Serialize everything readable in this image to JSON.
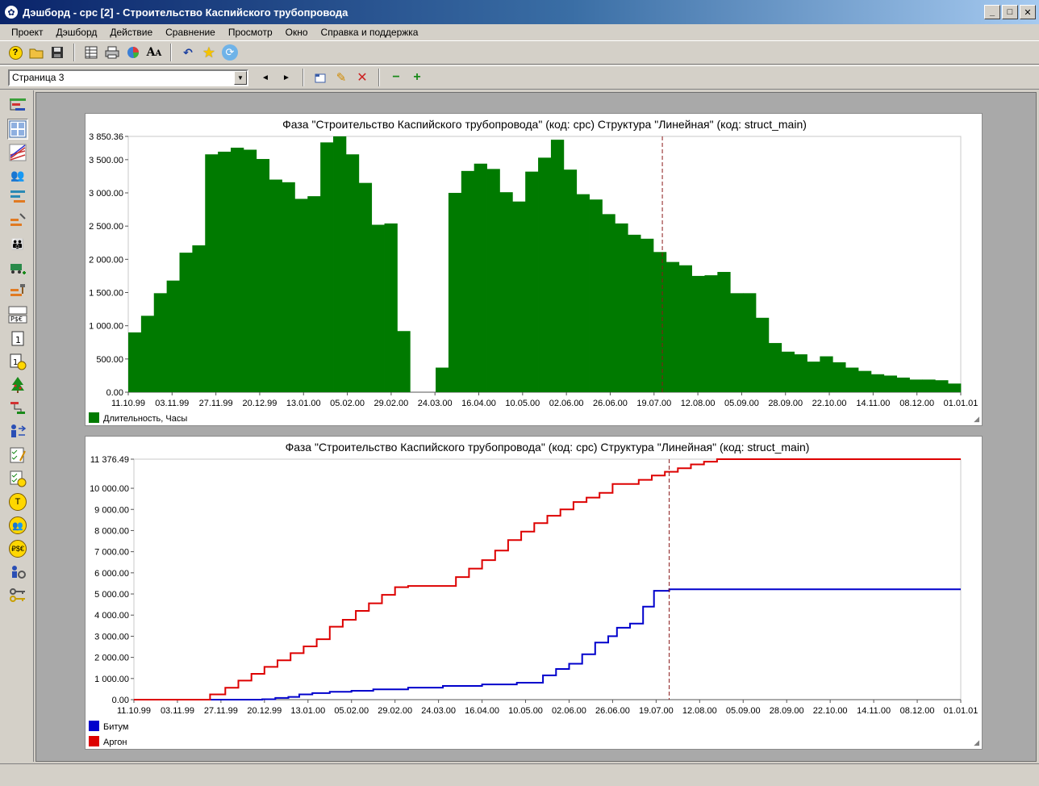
{
  "window": {
    "title": "Дэшборд - cpc [2] - Строительство Каспийского трубопровода",
    "controls": [
      "_",
      "□",
      "✕"
    ]
  },
  "menu": [
    "Проект",
    "Дэшборд",
    "Действие",
    "Сравнение",
    "Просмотр",
    "Окно",
    "Справка и поддержка"
  ],
  "toolbar": {
    "icons": [
      "help-icon",
      "open-folder-icon",
      "save-icon",
      "table-icon",
      "print-icon",
      "pie-chart-icon",
      "font-icon",
      "undo-icon",
      "star-icon",
      "refresh-icon"
    ]
  },
  "page_toolbar": {
    "page_select_value": "Страница 3",
    "icons": [
      "prev-arrow-icon",
      "next-arrow-icon",
      "new-page-icon",
      "edit-pencil-icon",
      "delete-icon",
      "zoom-out-icon",
      "zoom-in-icon"
    ]
  },
  "left_toolbar_icons": [
    "structure-tree-icon",
    "dashboard-grid-icon",
    "lines-chart-icon",
    "resources-group-icon",
    "gantt-bars-icon",
    "tasks-tools-icon",
    "people-group-icon",
    "machine-add-icon",
    "hammer-bars-icon",
    "currency-table-icon",
    "calendar-icon",
    "calendar-clock-icon",
    "tree-icon",
    "link-tasks-icon",
    "person-arrows-icon",
    "checklist-edit-icon",
    "checklist-clock-icon",
    "round-tool-icon",
    "round-people-icon",
    "round-currency-icon",
    "settings-people-icon",
    "keys-icon"
  ],
  "colors": {
    "histogram": "#007a00",
    "bitum": "#0000cc",
    "argon": "#dd0000",
    "today_line": "#8b1a1a"
  },
  "chart_data": [
    {
      "type": "bar",
      "title": "Фаза \"Строительство Каспийского трубопровода\" (код: cpc) Структура \"Линейная\" (код: struct_main)",
      "x_tick_labels": [
        "11.10.99",
        "03.11.99",
        "27.11.99",
        "20.12.99",
        "13.01.00",
        "05.02.00",
        "29.02.00",
        "24.03.00",
        "16.04.00",
        "10.05.00",
        "02.06.00",
        "26.06.00",
        "19.07.00",
        "12.08.00",
        "05.09.00",
        "28.09.00",
        "22.10.00",
        "14.11.00",
        "08.12.00",
        "01.01.01"
      ],
      "y_tick_labels": [
        "0.00",
        "500.00",
        "1 000.00",
        "1 500.00",
        "2 000.00",
        "2 500.00",
        "3 000.00",
        "3 500.00",
        "3 850.36"
      ],
      "ylim": [
        0,
        3850.36
      ],
      "series": [
        {
          "name": "Длительность, Часы",
          "values": [
            900,
            1150,
            1490,
            1680,
            2100,
            2210,
            3580,
            3620,
            3680,
            3650,
            3510,
            3200,
            3160,
            2910,
            2950,
            3760,
            3850.36,
            3580,
            3150,
            2520,
            2540,
            920,
            0,
            0,
            370,
            3000,
            3330,
            3440,
            3360,
            3010,
            2870,
            3320,
            3530,
            3800,
            3350,
            2980,
            2900,
            2680,
            2540,
            2370,
            2310,
            2110,
            1960,
            1910,
            1750,
            1760,
            1810,
            1490,
            1490,
            1120,
            740,
            610,
            570,
            460,
            540,
            450,
            370,
            320,
            270,
            250,
            220,
            190,
            190,
            180,
            130
          ]
        }
      ],
      "today_index": 41.7,
      "legend_position": "bottom-left"
    },
    {
      "type": "line",
      "title": "Фаза \"Строительство Каспийского трубопровода\" (код: cpc) Структура \"Линейная\" (код: struct_main)",
      "x_tick_labels": [
        "11.10.99",
        "03.11.99",
        "27.11.99",
        "20.12.99",
        "13.01.00",
        "05.02.00",
        "29.02.00",
        "24.03.00",
        "16.04.00",
        "10.05.00",
        "02.06.00",
        "26.06.00",
        "19.07.00",
        "12.08.00",
        "05.09.00",
        "28.09.00",
        "22.10.00",
        "14.11.00",
        "08.12.00",
        "01.01.01"
      ],
      "y_tick_labels": [
        "0.00",
        "1 000.00",
        "2 000.00",
        "3 000.00",
        "4 000.00",
        "5 000.00",
        "6 000.00",
        "7 000.00",
        "8 000.00",
        "9 000.00",
        "10 000.00",
        "11 376.49"
      ],
      "ylim": [
        0,
        11376.49
      ],
      "x_range_ticks": [
        0,
        19
      ],
      "series": [
        {
          "name": "Битум",
          "points": [
            [
              0,
              0
            ],
            [
              2.95,
              0
            ],
            [
              2.95,
              20
            ],
            [
              3.25,
              20
            ],
            [
              3.25,
              80
            ],
            [
              3.55,
              80
            ],
            [
              3.55,
              130
            ],
            [
              3.8,
              130
            ],
            [
              3.8,
              250
            ],
            [
              4.1,
              250
            ],
            [
              4.1,
              310
            ],
            [
              4.5,
              310
            ],
            [
              4.5,
              370
            ],
            [
              5.0,
              370
            ],
            [
              5.0,
              420
            ],
            [
              5.5,
              420
            ],
            [
              5.5,
              490
            ],
            [
              6.3,
              490
            ],
            [
              6.3,
              570
            ],
            [
              7.1,
              570
            ],
            [
              7.1,
              650
            ],
            [
              8.0,
              650
            ],
            [
              8.0,
              720
            ],
            [
              8.8,
              720
            ],
            [
              8.8,
              800
            ],
            [
              9.4,
              800
            ],
            [
              9.4,
              1150
            ],
            [
              9.7,
              1150
            ],
            [
              9.7,
              1450
            ],
            [
              10.0,
              1450
            ],
            [
              10.0,
              1700
            ],
            [
              10.3,
              1700
            ],
            [
              10.3,
              2150
            ],
            [
              10.6,
              2150
            ],
            [
              10.6,
              2700
            ],
            [
              10.9,
              2700
            ],
            [
              10.9,
              3000
            ],
            [
              11.1,
              3000
            ],
            [
              11.1,
              3400
            ],
            [
              11.4,
              3400
            ],
            [
              11.4,
              3600
            ],
            [
              11.7,
              3600
            ],
            [
              11.7,
              4400
            ],
            [
              11.95,
              4400
            ],
            [
              11.95,
              5150
            ],
            [
              12.3,
              5150
            ],
            [
              12.3,
              5220
            ],
            [
              19,
              5220
            ]
          ]
        },
        {
          "name": "Аргон",
          "points": [
            [
              0,
              0
            ],
            [
              1.75,
              0
            ],
            [
              1.75,
              250
            ],
            [
              2.1,
              250
            ],
            [
              2.1,
              560
            ],
            [
              2.4,
              560
            ],
            [
              2.4,
              900
            ],
            [
              2.7,
              900
            ],
            [
              2.7,
              1220
            ],
            [
              3.0,
              1220
            ],
            [
              3.0,
              1550
            ],
            [
              3.3,
              1550
            ],
            [
              3.3,
              1860
            ],
            [
              3.6,
              1860
            ],
            [
              3.6,
              2200
            ],
            [
              3.9,
              2200
            ],
            [
              3.9,
              2520
            ],
            [
              4.2,
              2520
            ],
            [
              4.2,
              2860
            ],
            [
              4.5,
              2860
            ],
            [
              4.5,
              3450
            ],
            [
              4.8,
              3450
            ],
            [
              4.8,
              3780
            ],
            [
              5.1,
              3780
            ],
            [
              5.1,
              4200
            ],
            [
              5.4,
              4200
            ],
            [
              5.4,
              4560
            ],
            [
              5.7,
              4560
            ],
            [
              5.7,
              4960
            ],
            [
              6.0,
              4960
            ],
            [
              6.0,
              5320
            ],
            [
              6.3,
              5320
            ],
            [
              6.3,
              5380
            ],
            [
              7.4,
              5380
            ],
            [
              7.4,
              5800
            ],
            [
              7.7,
              5800
            ],
            [
              7.7,
              6200
            ],
            [
              8.0,
              6200
            ],
            [
              8.0,
              6600
            ],
            [
              8.3,
              6600
            ],
            [
              8.3,
              7050
            ],
            [
              8.6,
              7050
            ],
            [
              8.6,
              7550
            ],
            [
              8.9,
              7550
            ],
            [
              8.9,
              7950
            ],
            [
              9.2,
              7950
            ],
            [
              9.2,
              8350
            ],
            [
              9.5,
              8350
            ],
            [
              9.5,
              8700
            ],
            [
              9.8,
              8700
            ],
            [
              9.8,
              9000
            ],
            [
              10.1,
              9000
            ],
            [
              10.1,
              9350
            ],
            [
              10.4,
              9350
            ],
            [
              10.4,
              9560
            ],
            [
              10.7,
              9560
            ],
            [
              10.7,
              9780
            ],
            [
              11.0,
              9780
            ],
            [
              11.0,
              10200
            ],
            [
              11.6,
              10200
            ],
            [
              11.6,
              10400
            ],
            [
              11.9,
              10400
            ],
            [
              11.9,
              10600
            ],
            [
              12.2,
              10600
            ],
            [
              12.2,
              10780
            ],
            [
              12.5,
              10780
            ],
            [
              12.5,
              10950
            ],
            [
              12.8,
              10950
            ],
            [
              12.8,
              11130
            ],
            [
              13.1,
              11130
            ],
            [
              13.1,
              11260
            ],
            [
              13.4,
              11260
            ],
            [
              13.4,
              11376.49
            ],
            [
              19,
              11376.49
            ]
          ]
        }
      ],
      "today_x": 12.3,
      "legend_position": "bottom-left"
    }
  ]
}
